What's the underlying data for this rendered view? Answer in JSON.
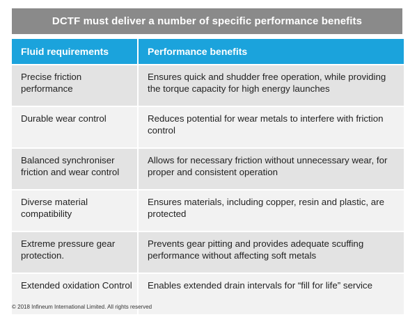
{
  "banner": {
    "title": "DCTF must deliver a number of specific performance benefits"
  },
  "table": {
    "headers": [
      "Fluid requirements",
      "Performance benefits"
    ],
    "rows": [
      {
        "requirement": "Precise friction performance",
        "benefit": "Ensures quick and shudder free operation, while providing the torque capacity for high energy launches"
      },
      {
        "requirement": "Durable wear control",
        "benefit": "Reduces potential for wear metals to interfere with friction control"
      },
      {
        "requirement": "Balanced synchroniser friction and wear control",
        "benefit": "Allows for necessary friction without unnecessary wear, for proper and consistent operation"
      },
      {
        "requirement": "Diverse material compatibility",
        "benefit": "Ensures materials, including copper, resin and plastic, are protected"
      },
      {
        "requirement": "Extreme pressure gear protection.",
        "benefit": "Prevents gear pitting and provides adequate scuffing performance without affecting soft metals"
      },
      {
        "requirement": "Extended oxidation Control",
        "benefit": "Enables extended drain intervals for “fill for life” service"
      }
    ]
  },
  "footer": {
    "copyright": "© 2018 Infineum International Limited. All rights reserved"
  },
  "colors": {
    "banner": "#8a8a8a",
    "header": "#1ba3dc",
    "row_dark": "#e3e3e3",
    "row_light": "#f2f2f2"
  }
}
